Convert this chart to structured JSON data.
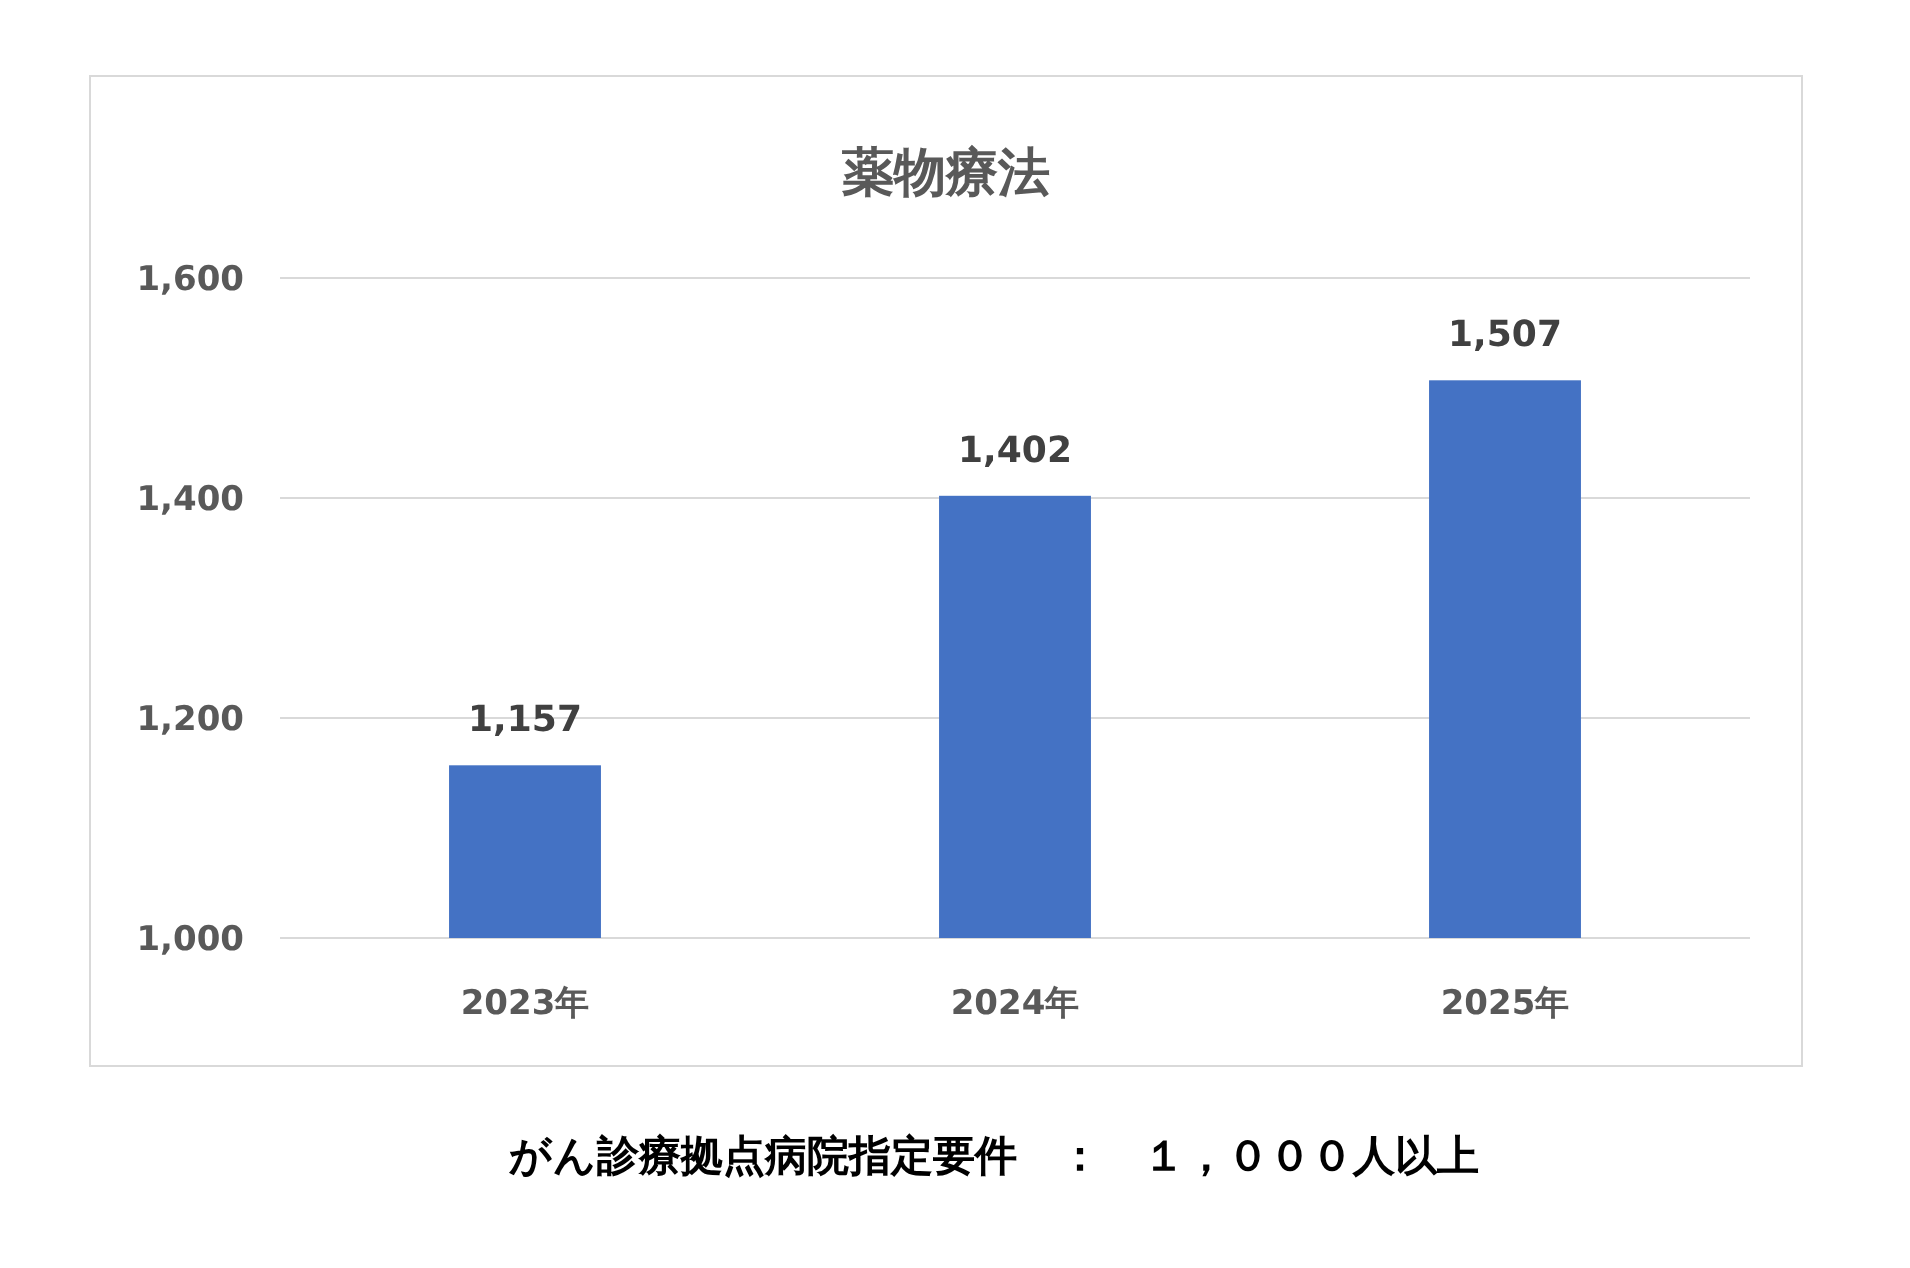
{
  "chart_data": {
    "type": "bar",
    "title": "薬物療法",
    "categories": [
      "2023年",
      "2024年",
      "2025年"
    ],
    "values": [
      1157,
      1402,
      1507
    ],
    "color": "#4472c4",
    "value_labels": [
      "1,157",
      "1,402",
      "1,507"
    ],
    "ylim": [
      1000,
      1600
    ],
    "yticks": [
      {
        "value": 1000,
        "label": "1,000"
      },
      {
        "value": 1200,
        "label": "1,200"
      },
      {
        "value": 1400,
        "label": "1,400"
      },
      {
        "value": 1600,
        "label": "1,600"
      }
    ],
    "grid": "y",
    "annotations": [
      "がん診療拠点病院指定要件　：　１，０００人以上"
    ]
  }
}
